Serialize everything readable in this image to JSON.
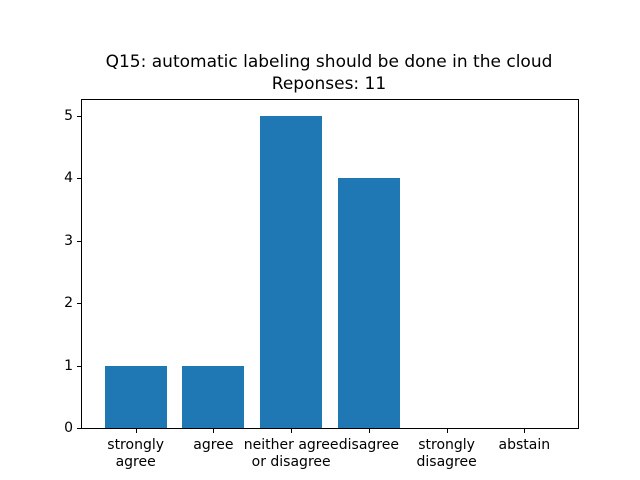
{
  "figure": {
    "background": "#ffffff"
  },
  "chart_data": {
    "type": "bar",
    "title": "Q15: automatic labeling should be done in the cloud",
    "subtitle": "Reponses: 11",
    "categories": [
      "strongly\nagree",
      "agree",
      "neither agree\nor disagree",
      "disagree",
      "strongly\ndisagree",
      "abstain"
    ],
    "values": [
      1,
      1,
      5,
      4,
      0,
      0
    ],
    "xlabel": "",
    "ylabel": "",
    "yticks": [
      0,
      1,
      2,
      3,
      4,
      5
    ],
    "ylim": [
      0,
      5.25
    ],
    "bar_color": "#1f77b4",
    "axis_color": "#000000",
    "grid": false,
    "legend": "none"
  }
}
